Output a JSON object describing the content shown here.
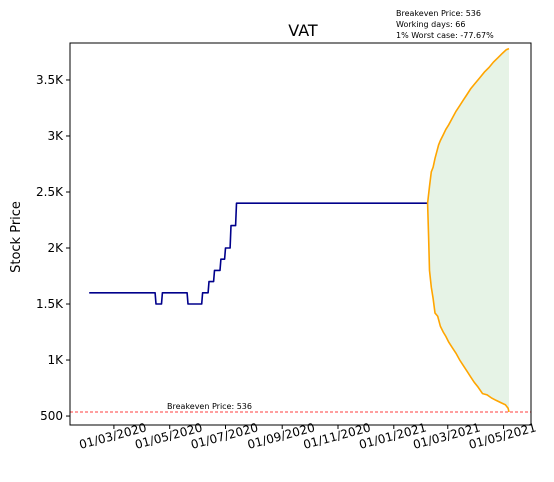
{
  "chart_data": {
    "type": "line",
    "title": "VAT",
    "xlabel": "",
    "ylabel": "Stock Price",
    "x_range": [
      "2020-01-13",
      "2021-05-31"
    ],
    "ylim": [
      420,
      3830
    ],
    "x_ticks": [
      {
        "date": "2020-03-01",
        "label": "01/03/2020"
      },
      {
        "date": "2020-05-01",
        "label": "01/05/2020"
      },
      {
        "date": "2020-07-01",
        "label": "01/07/2020"
      },
      {
        "date": "2020-09-01",
        "label": "01/09/2020"
      },
      {
        "date": "2020-11-01",
        "label": "01/11/2020"
      },
      {
        "date": "2021-01-01",
        "label": "01/01/2021"
      },
      {
        "date": "2021-03-01",
        "label": "01/03/2021"
      },
      {
        "date": "2021-05-01",
        "label": "01/05/2021"
      }
    ],
    "y_ticks": [
      {
        "value": 500,
        "label": "500"
      },
      {
        "value": 1000,
        "label": "1K"
      },
      {
        "value": 1500,
        "label": "1.5K"
      },
      {
        "value": 2000,
        "label": "2K"
      },
      {
        "value": 2500,
        "label": "2.5K"
      },
      {
        "value": 3000,
        "label": "3K"
      },
      {
        "value": 3500,
        "label": "3.5K"
      }
    ],
    "info_lines": [
      "Breakeven Price: 536",
      "Working days: 66",
      "1% Worst case: -77.67%"
    ],
    "breakeven": {
      "value": 536,
      "label": "Breakeven Price: 536",
      "color": "#ff0000"
    },
    "series": [
      {
        "color": "#00008b",
        "points": [
          [
            "2020-02-03",
            1600
          ],
          [
            "2020-04-15",
            1600
          ],
          [
            "2020-04-16",
            1500
          ],
          [
            "2020-04-22",
            1500
          ],
          [
            "2020-04-23",
            1600
          ],
          [
            "2020-05-20",
            1600
          ],
          [
            "2020-05-21",
            1500
          ],
          [
            "2020-06-05",
            1500
          ],
          [
            "2020-06-06",
            1600
          ],
          [
            "2020-06-12",
            1600
          ],
          [
            "2020-06-13",
            1700
          ],
          [
            "2020-06-18",
            1700
          ],
          [
            "2020-06-19",
            1800
          ],
          [
            "2020-06-25",
            1800
          ],
          [
            "2020-06-26",
            1900
          ],
          [
            "2020-06-30",
            1900
          ],
          [
            "2020-07-01",
            2000
          ],
          [
            "2020-07-06",
            2000
          ],
          [
            "2020-07-07",
            2200
          ],
          [
            "2020-07-12",
            2200
          ],
          [
            "2020-07-13",
            2400
          ],
          [
            "2021-02-07",
            2400
          ]
        ]
      }
    ],
    "forecast_upper": {
      "color": "#ffa500",
      "points": [
        [
          "2021-02-07",
          2400
        ],
        [
          "2021-02-09",
          2550
        ],
        [
          "2021-02-11",
          2680
        ],
        [
          "2021-02-13",
          2720
        ],
        [
          "2021-02-15",
          2800
        ],
        [
          "2021-02-17",
          2860
        ],
        [
          "2021-02-19",
          2920
        ],
        [
          "2021-02-21",
          2960
        ],
        [
          "2021-02-24",
          3010
        ],
        [
          "2021-02-27",
          3060
        ],
        [
          "2021-03-02",
          3100
        ],
        [
          "2021-03-06",
          3160
        ],
        [
          "2021-03-10",
          3220
        ],
        [
          "2021-03-14",
          3270
        ],
        [
          "2021-03-18",
          3320
        ],
        [
          "2021-03-22",
          3370
        ],
        [
          "2021-03-26",
          3420
        ],
        [
          "2021-03-31",
          3470
        ],
        [
          "2021-04-05",
          3520
        ],
        [
          "2021-04-10",
          3570
        ],
        [
          "2021-04-15",
          3610
        ],
        [
          "2021-04-20",
          3660
        ],
        [
          "2021-04-25",
          3700
        ],
        [
          "2021-04-30",
          3740
        ],
        [
          "2021-05-04",
          3770
        ],
        [
          "2021-05-07",
          3780
        ]
      ]
    },
    "forecast_lower": {
      "color": "#ffa500",
      "points": [
        [
          "2021-02-07",
          2400
        ],
        [
          "2021-02-08",
          2100
        ],
        [
          "2021-02-09",
          1800
        ],
        [
          "2021-02-11",
          1650
        ],
        [
          "2021-02-13",
          1550
        ],
        [
          "2021-02-15",
          1420
        ],
        [
          "2021-02-18",
          1390
        ],
        [
          "2021-02-21",
          1300
        ],
        [
          "2021-02-24",
          1250
        ],
        [
          "2021-02-27",
          1210
        ],
        [
          "2021-03-02",
          1160
        ],
        [
          "2021-03-06",
          1110
        ],
        [
          "2021-03-10",
          1060
        ],
        [
          "2021-03-14",
          1000
        ],
        [
          "2021-03-18",
          950
        ],
        [
          "2021-03-22",
          900
        ],
        [
          "2021-03-26",
          850
        ],
        [
          "2021-03-30",
          800
        ],
        [
          "2021-04-03",
          760
        ],
        [
          "2021-04-08",
          700
        ],
        [
          "2021-04-13",
          690
        ],
        [
          "2021-04-18",
          660
        ],
        [
          "2021-04-23",
          640
        ],
        [
          "2021-04-28",
          620
        ],
        [
          "2021-05-03",
          600
        ],
        [
          "2021-05-06",
          570
        ],
        [
          "2021-05-07",
          536
        ]
      ]
    },
    "forecast_fill": {
      "color": "#d8ecd8",
      "opacity": 0.65
    },
    "grid": false,
    "legend": "none"
  }
}
